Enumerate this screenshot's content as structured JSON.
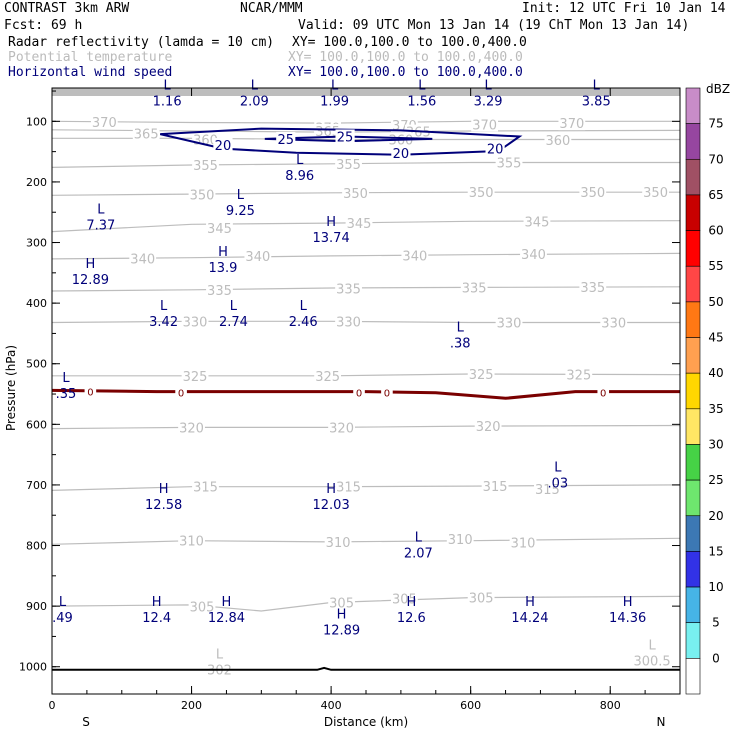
{
  "header": {
    "model": "CONTRAST   3km ARW",
    "org": "NCAR/MMM",
    "init": "Init: 12 UTC Fri 10 Jan 14",
    "fcst": "Fcst:   69 h",
    "valid": "Valid: 09 UTC Mon 13 Jan 14 (19 ChT Mon 13 Jan 14)",
    "field1": "Radar reflectivity (lamda = 10 cm)",
    "xy1": "XY= 100.0,100.0 to 100.0,400.0",
    "field2": "Potential temperature",
    "xy2": "XY= 100.0,100.0 to 100.0,400.0",
    "field3": "Horizontal wind speed",
    "xy3": "XY= 100.0,100.0 to 100.0,400.0"
  },
  "colors": {
    "theta": "#bdbdbd",
    "wind": "#00007a",
    "zero": "#7a0000",
    "ground": "#000000"
  },
  "chart_data": {
    "type": "cross-section",
    "xlabel": "Distance (km)",
    "ylabel": "Pressure (hPa)",
    "xlim": [
      0,
      900
    ],
    "ylim": [
      1045,
      45
    ],
    "x_ticks": [
      0,
      200,
      400,
      600,
      800
    ],
    "y_ticks": [
      100,
      200,
      300,
      400,
      500,
      600,
      700,
      800,
      900,
      1000
    ],
    "end_labels": {
      "left": "S",
      "right": "N"
    },
    "colorbar": {
      "unit": "dBZ",
      "levels": [
        75,
        70,
        65,
        60,
        55,
        50,
        45,
        40,
        35,
        30,
        25,
        20,
        15,
        10,
        5,
        0
      ],
      "colors": [
        "#c88cc8",
        "#9646a0",
        "#a05064",
        "#c80000",
        "#ff0000",
        "#ff4646",
        "#ff7814",
        "#ffa050",
        "#ffd700",
        "#ffe664",
        "#46d246",
        "#6ee66e",
        "#3c78b4",
        "#3232e6",
        "#46b4e6",
        "#78f0f0",
        "#ffffff"
      ]
    },
    "theta_contours": [
      {
        "label": "370",
        "level": 370,
        "points": [
          [
            0,
            100
          ],
          [
            200,
            102
          ],
          [
            400,
            103
          ],
          [
            600,
            100
          ],
          [
            900,
            100
          ]
        ],
        "labels_at": [
          [
            75,
            101
          ],
          [
            395,
            110
          ],
          [
            505,
            106
          ],
          [
            620,
            105
          ],
          [
            745,
            103
          ]
        ]
      },
      {
        "label": "365",
        "level": 365,
        "points": [
          [
            0,
            114
          ],
          [
            200,
            116
          ],
          [
            400,
            118
          ],
          [
            600,
            116
          ],
          [
            900,
            115
          ]
        ],
        "labels_at": [
          [
            135,
            120
          ],
          [
            395,
            116
          ],
          [
            525,
            117
          ]
        ]
      },
      {
        "label": "360",
        "level": 360,
        "points": [
          [
            0,
            128
          ],
          [
            200,
            128
          ],
          [
            400,
            130
          ],
          [
            600,
            130
          ],
          [
            900,
            130
          ]
        ],
        "labels_at": [
          [
            220,
            130
          ],
          [
            500,
            130
          ],
          [
            725,
            131
          ]
        ]
      },
      {
        "label": "355",
        "level": 355,
        "points": [
          [
            0,
            176
          ],
          [
            200,
            172
          ],
          [
            400,
            170
          ],
          [
            600,
            168
          ],
          [
            900,
            168
          ]
        ],
        "labels_at": [
          [
            220,
            172
          ],
          [
            425,
            170
          ],
          [
            655,
            168
          ]
        ]
      },
      {
        "label": "350",
        "level": 350,
        "points": [
          [
            0,
            222
          ],
          [
            200,
            220
          ],
          [
            400,
            218
          ],
          [
            600,
            217
          ],
          [
            900,
            217
          ]
        ],
        "labels_at": [
          [
            215,
            221
          ],
          [
            435,
            218
          ],
          [
            615,
            217
          ],
          [
            775,
            217
          ],
          [
            865,
            217
          ]
        ]
      },
      {
        "label": "345",
        "level": 345,
        "points": [
          [
            0,
            282
          ],
          [
            200,
            270
          ],
          [
            400,
            268
          ],
          [
            600,
            265
          ],
          [
            900,
            264
          ]
        ],
        "labels_at": [
          [
            240,
            276
          ],
          [
            440,
            268
          ],
          [
            695,
            265
          ]
        ]
      },
      {
        "label": "340",
        "level": 340,
        "points": [
          [
            0,
            327
          ],
          [
            200,
            325
          ],
          [
            400,
            322
          ],
          [
            600,
            320
          ],
          [
            900,
            318
          ]
        ],
        "labels_at": [
          [
            130,
            326
          ],
          [
            295,
            322
          ],
          [
            520,
            321
          ],
          [
            690,
            319
          ]
        ]
      },
      {
        "label": "335",
        "level": 335,
        "points": [
          [
            0,
            380
          ],
          [
            200,
            378
          ],
          [
            400,
            375
          ],
          [
            600,
            374
          ],
          [
            900,
            373
          ]
        ],
        "labels_at": [
          [
            240,
            378
          ],
          [
            425,
            376
          ],
          [
            605,
            374
          ],
          [
            775,
            373
          ]
        ]
      },
      {
        "label": "330",
        "level": 330,
        "points": [
          [
            0,
            432
          ],
          [
            200,
            430
          ],
          [
            400,
            430
          ],
          [
            600,
            432
          ],
          [
            900,
            432
          ]
        ],
        "labels_at": [
          [
            205,
            430
          ],
          [
            425,
            430
          ],
          [
            655,
            432
          ],
          [
            805,
            432
          ]
        ]
      },
      {
        "label": "325",
        "level": 325,
        "points": [
          [
            0,
            520
          ],
          [
            200,
            520
          ],
          [
            400,
            520
          ],
          [
            600,
            517
          ],
          [
            900,
            518
          ]
        ],
        "labels_at": [
          [
            205,
            520
          ],
          [
            395,
            520
          ],
          [
            615,
            517
          ],
          [
            755,
            518
          ]
        ]
      },
      {
        "label": "320",
        "level": 320,
        "points": [
          [
            0,
            607
          ],
          [
            200,
            605
          ],
          [
            400,
            605
          ],
          [
            600,
            603
          ],
          [
            900,
            602
          ]
        ],
        "labels_at": [
          [
            200,
            605
          ],
          [
            415,
            605
          ],
          [
            625,
            603
          ]
        ]
      },
      {
        "label": "315",
        "level": 315,
        "points": [
          [
            0,
            709
          ],
          [
            200,
            703
          ],
          [
            400,
            703
          ],
          [
            600,
            702
          ],
          [
            900,
            700
          ]
        ],
        "labels_at": [
          [
            220,
            703
          ],
          [
            425,
            703
          ],
          [
            635,
            702
          ],
          [
            710,
            707
          ]
        ]
      },
      {
        "label": "310",
        "level": 310,
        "points": [
          [
            0,
            798
          ],
          [
            200,
            792
          ],
          [
            400,
            794
          ],
          [
            600,
            792
          ],
          [
            900,
            788
          ]
        ],
        "labels_at": [
          [
            200,
            792
          ],
          [
            410,
            794
          ],
          [
            585,
            789
          ],
          [
            675,
            795
          ]
        ]
      },
      {
        "label": "305",
        "level": 305,
        "points": [
          [
            0,
            900
          ],
          [
            200,
            898
          ],
          [
            300,
            908
          ],
          [
            400,
            894
          ],
          [
            600,
            886
          ],
          [
            900,
            884
          ]
        ],
        "labels_at": [
          [
            215,
            901
          ],
          [
            415,
            894
          ],
          [
            505,
            887
          ],
          [
            615,
            886
          ]
        ]
      }
    ],
    "theta_extrema": [
      {
        "type": "L",
        "value": "302",
        "x": 240,
        "p": 1000
      },
      {
        "type": "L",
        "value": "300.5",
        "x": 860,
        "p": 985
      }
    ],
    "zero_isoline": {
      "label": "0",
      "points": [
        [
          0,
          544
        ],
        [
          150,
          546
        ],
        [
          300,
          546
        ],
        [
          450,
          546
        ],
        [
          550,
          548
        ],
        [
          650,
          557
        ],
        [
          750,
          546
        ],
        [
          900,
          546
        ]
      ],
      "labels_at": [
        [
          55,
          544
        ],
        [
          185,
          546
        ],
        [
          440,
          546
        ],
        [
          480,
          546
        ],
        [
          790,
          546
        ]
      ]
    },
    "wind_contours": [
      {
        "label": "20",
        "level": 20,
        "points": [
          [
            155,
            121
          ],
          [
            300,
            112
          ],
          [
            500,
            115
          ],
          [
            670,
            125
          ],
          [
            640,
            149
          ],
          [
            500,
            155
          ],
          [
            350,
            152
          ],
          [
            245,
            145
          ],
          [
            155,
            121
          ]
        ],
        "labels_at": [
          [
            245,
            139
          ],
          [
            500,
            152
          ],
          [
            635,
            145
          ]
        ]
      },
      {
        "label": "25",
        "level": 25,
        "points": [
          [
            305,
            129
          ],
          [
            420,
            125
          ],
          [
            545,
            129
          ],
          [
            420,
            133
          ],
          [
            305,
            129
          ]
        ],
        "labels_at": [
          [
            335,
            129
          ],
          [
            420,
            125
          ]
        ]
      }
    ],
    "wind_extrema": [
      {
        "type": "L",
        "value": "1.16",
        "x": 165,
        "p": 57
      },
      {
        "type": "L",
        "value": "2.09",
        "x": 290,
        "p": 57
      },
      {
        "type": "L",
        "value": "1.99",
        "x": 405,
        "p": 57
      },
      {
        "type": "L",
        "value": "1.56",
        "x": 530,
        "p": 57
      },
      {
        "type": "L",
        "value": "3.29",
        "x": 625,
        "p": 57
      },
      {
        "type": "L",
        "value": "3.85",
        "x": 780,
        "p": 57
      },
      {
        "type": "L",
        "value": "8.96",
        "x": 355,
        "p": 180
      },
      {
        "type": "L",
        "value": "9.25",
        "x": 270,
        "p": 238
      },
      {
        "type": "L",
        "value": "7.37",
        "x": 70,
        "p": 262
      },
      {
        "type": "H",
        "value": "13.74",
        "x": 400,
        "p": 283
      },
      {
        "type": "H",
        "value": "13.9",
        "x": 245,
        "p": 332
      },
      {
        "type": "H",
        "value": "12.89",
        "x": 55,
        "p": 352
      },
      {
        "type": "L",
        "value": "3.42",
        "x": 160,
        "p": 421
      },
      {
        "type": "L",
        "value": "2.74",
        "x": 260,
        "p": 421
      },
      {
        "type": "L",
        "value": "2.46",
        "x": 360,
        "p": 421
      },
      {
        "type": "L",
        "value": ".38",
        "x": 585,
        "p": 457
      },
      {
        "type": "L",
        "value": ".35",
        "x": 20,
        "p": 540
      },
      {
        "type": "L",
        "value": ".03",
        "x": 725,
        "p": 688
      },
      {
        "type": "H",
        "value": "12.58",
        "x": 160,
        "p": 723
      },
      {
        "type": "H",
        "value": "12.03",
        "x": 400,
        "p": 723
      },
      {
        "type": "L",
        "value": "2.07",
        "x": 525,
        "p": 803
      },
      {
        "type": "L",
        "value": ".49",
        "x": 15,
        "p": 910
      },
      {
        "type": "H",
        "value": "12.4",
        "x": 150,
        "p": 910
      },
      {
        "type": "H",
        "value": "12.84",
        "x": 250,
        "p": 910
      },
      {
        "type": "H",
        "value": "12.6",
        "x": 515,
        "p": 910
      },
      {
        "type": "H",
        "value": "14.24",
        "x": 685,
        "p": 910
      },
      {
        "type": "H",
        "value": "14.36",
        "x": 825,
        "p": 910
      },
      {
        "type": "H",
        "value": "12.89",
        "x": 415,
        "p": 930
      }
    ],
    "ground": {
      "points": [
        [
          0,
          1005
        ],
        [
          380,
          1005
        ],
        [
          390,
          1002
        ],
        [
          400,
          1005
        ],
        [
          900,
          1005
        ]
      ]
    }
  }
}
